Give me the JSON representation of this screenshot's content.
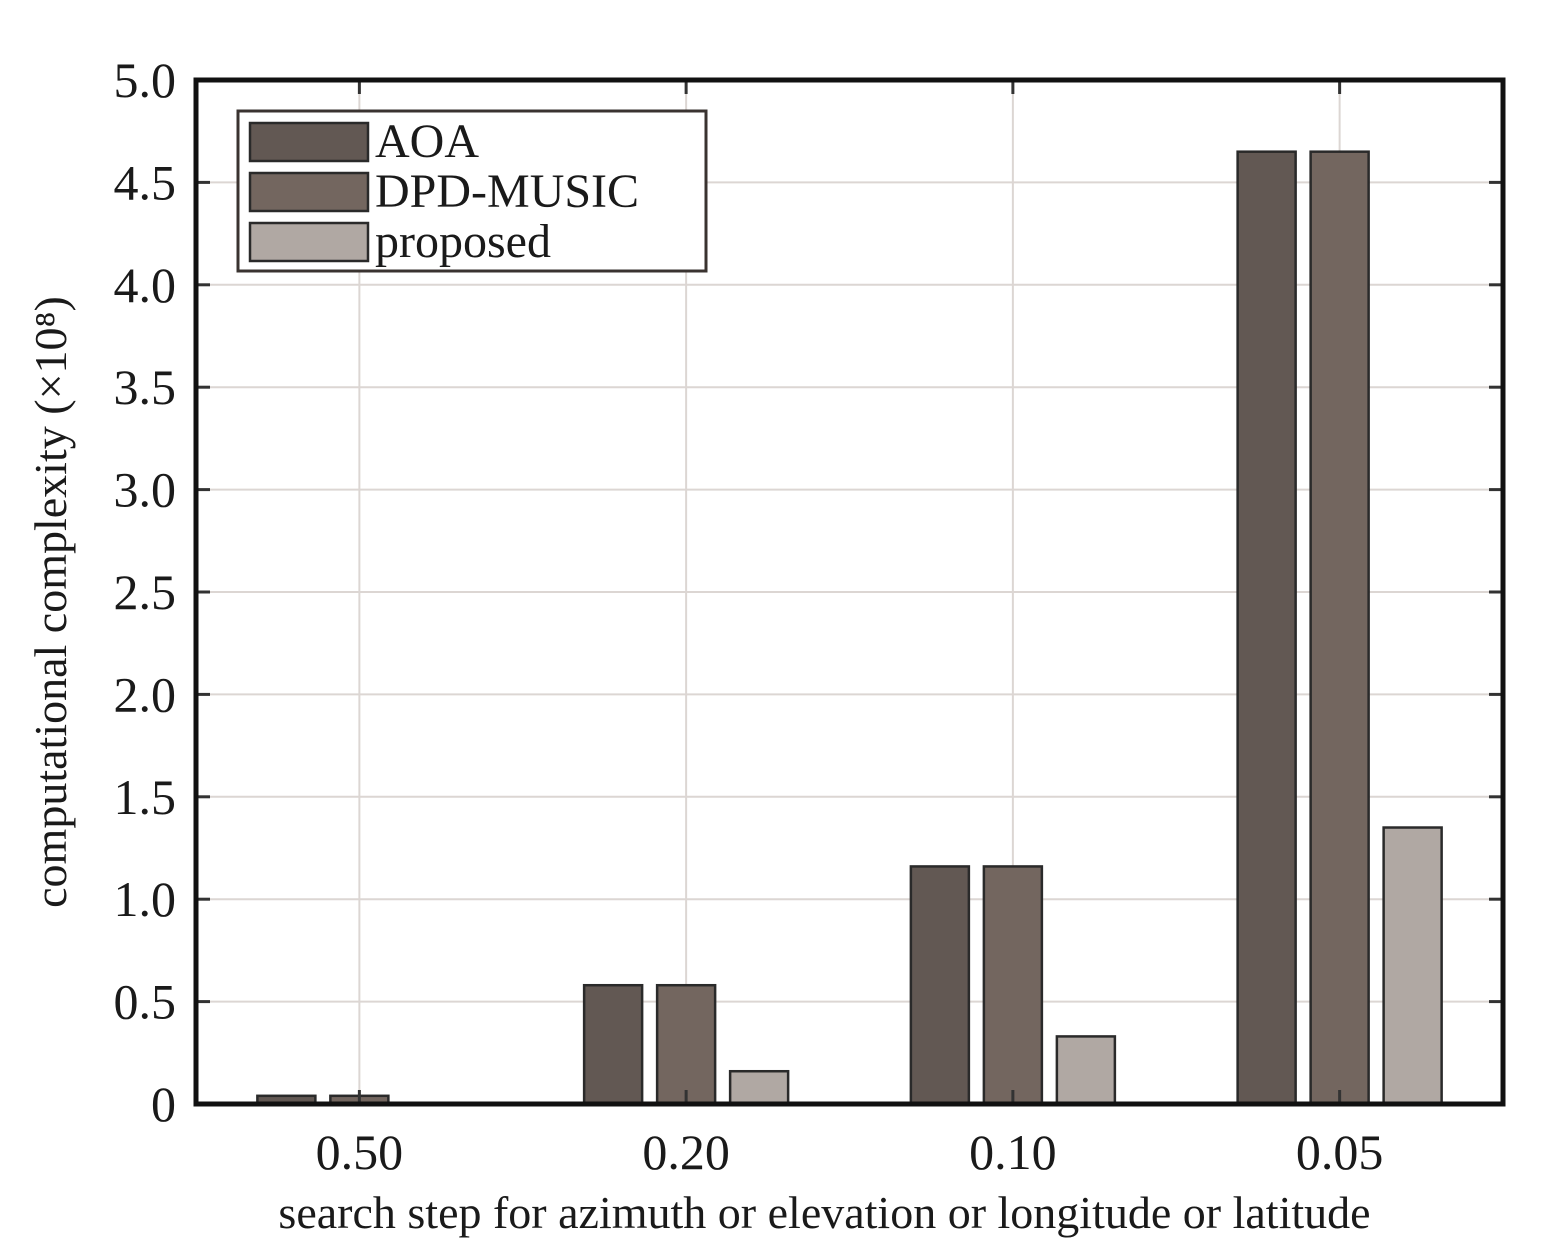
{
  "chart_data": {
    "type": "bar",
    "title": "",
    "xlabel": "search step for azimuth or elevation or longitude or latitude",
    "ylabel": "computational complexity (×10⁸)",
    "categories": [
      "0.50",
      "0.20",
      "0.10",
      "0.05"
    ],
    "ylim": [
      0,
      5.0
    ],
    "yticks": [
      0,
      0.5,
      1.0,
      1.5,
      2.0,
      2.5,
      3.0,
      3.5,
      4.0,
      4.5,
      5.0
    ],
    "ytick_labels": [
      "0",
      "0.5",
      "1.0",
      "1.5",
      "2.0",
      "2.5",
      "3.0",
      "3.5",
      "4.0",
      "4.5",
      "5.0"
    ],
    "grid": true,
    "legend_position": "top-left",
    "series": [
      {
        "name": "AOA",
        "color": "#625853",
        "values": [
          0.04,
          0.58,
          1.16,
          4.65
        ]
      },
      {
        "name": "DPD-MUSIC",
        "color": "#73665f",
        "values": [
          0.04,
          0.58,
          1.16,
          4.65
        ]
      },
      {
        "name": "proposed",
        "color": "#b0a8a3",
        "values": [
          0.005,
          0.16,
          0.33,
          1.35
        ]
      }
    ]
  }
}
